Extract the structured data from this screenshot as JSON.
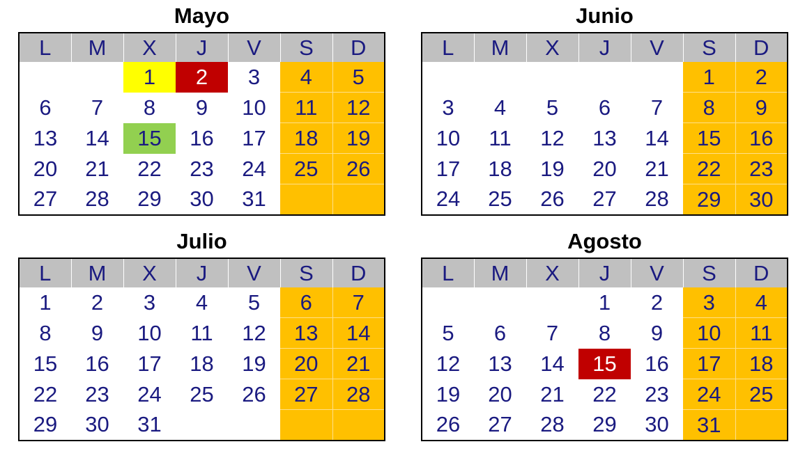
{
  "colors": {
    "text": "#1a1a80",
    "header_bg": "#c0c0c0",
    "weekend_bg": "#ffc000",
    "highlight_yellow": "#ffff00",
    "highlight_red": "#c00000",
    "highlight_green": "#92d050"
  },
  "day_headers": [
    "L",
    "M",
    "X",
    "J",
    "V",
    "S",
    "D"
  ],
  "months": [
    {
      "name": "Mayo",
      "weeks": [
        [
          "",
          "",
          "1",
          "2",
          "3",
          "4",
          "5"
        ],
        [
          "6",
          "7",
          "8",
          "9",
          "10",
          "11",
          "12"
        ],
        [
          "13",
          "14",
          "15",
          "16",
          "17",
          "18",
          "19"
        ],
        [
          "20",
          "21",
          "22",
          "23",
          "24",
          "25",
          "26"
        ],
        [
          "27",
          "28",
          "29",
          "30",
          "31",
          "",
          ""
        ]
      ],
      "highlights": [
        {
          "day": "1",
          "color": "yellow"
        },
        {
          "day": "2",
          "color": "red"
        },
        {
          "day": "15",
          "color": "green"
        }
      ]
    },
    {
      "name": "Junio",
      "weeks": [
        [
          "",
          "",
          "",
          "",
          "",
          "1",
          "2"
        ],
        [
          "3",
          "4",
          "5",
          "6",
          "7",
          "8",
          "9"
        ],
        [
          "10",
          "11",
          "12",
          "13",
          "14",
          "15",
          "16"
        ],
        [
          "17",
          "18",
          "19",
          "20",
          "21",
          "22",
          "23"
        ],
        [
          "24",
          "25",
          "26",
          "27",
          "28",
          "29",
          "30"
        ]
      ],
      "highlights": []
    },
    {
      "name": "Julio",
      "weeks": [
        [
          "1",
          "2",
          "3",
          "4",
          "5",
          "6",
          "7"
        ],
        [
          "8",
          "9",
          "10",
          "11",
          "12",
          "13",
          "14"
        ],
        [
          "15",
          "16",
          "17",
          "18",
          "19",
          "20",
          "21"
        ],
        [
          "22",
          "23",
          "24",
          "25",
          "26",
          "27",
          "28"
        ],
        [
          "29",
          "30",
          "31",
          "",
          "",
          "",
          ""
        ]
      ],
      "highlights": []
    },
    {
      "name": "Agosto",
      "weeks": [
        [
          "",
          "",
          "",
          "1",
          "2",
          "3",
          "4"
        ],
        [
          "5",
          "6",
          "7",
          "8",
          "9",
          "10",
          "11"
        ],
        [
          "12",
          "13",
          "14",
          "15",
          "16",
          "17",
          "18"
        ],
        [
          "19",
          "20",
          "21",
          "22",
          "23",
          "24",
          "25"
        ],
        [
          "26",
          "27",
          "28",
          "29",
          "30",
          "31",
          ""
        ]
      ],
      "highlights": [
        {
          "day": "15",
          "color": "red"
        }
      ]
    }
  ]
}
